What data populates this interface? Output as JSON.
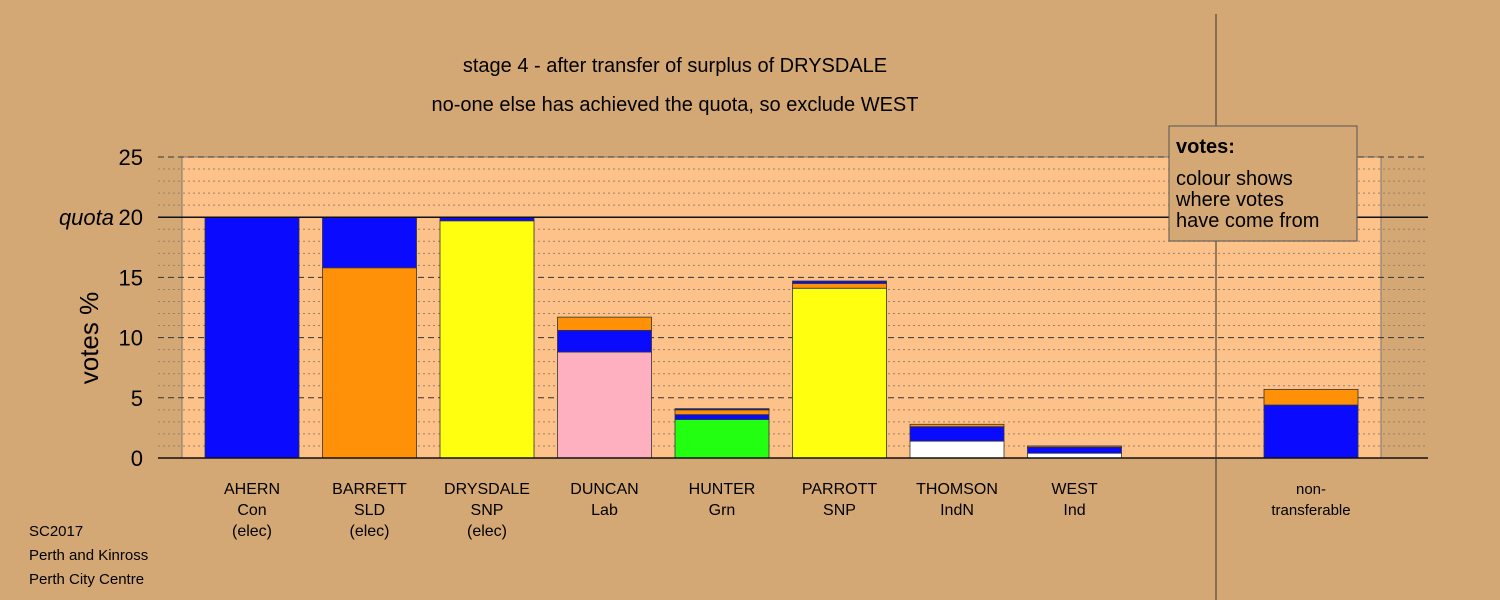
{
  "chart_data": {
    "type": "bar",
    "stacked": true,
    "title_lines": [
      "stage 4 - after transfer of surplus of DRYSDALE",
      "no-one else has achieved the quota, so exclude WEST"
    ],
    "ylabel": "votes %",
    "ylim": [
      0,
      25
    ],
    "yticks": [
      0,
      5,
      10,
      15,
      20,
      25
    ],
    "quota": 20,
    "quota_label": "quota",
    "grid": true,
    "categories": [
      {
        "lines": [
          "AHERN",
          "Con",
          "(elec)"
        ],
        "segments": [
          {
            "color": "#0a0aff",
            "value": 20.0
          }
        ]
      },
      {
        "lines": [
          "BARRETT",
          "SLD",
          "(elec)"
        ],
        "segments": [
          {
            "color": "#ff9108",
            "value": 15.8
          },
          {
            "color": "#0a0aff",
            "value": 4.2
          }
        ]
      },
      {
        "lines": [
          "DRYSDALE",
          "SNP",
          "(elec)"
        ],
        "segments": [
          {
            "color": "#ffff10",
            "value": 19.7
          },
          {
            "color": "#0a0aff",
            "value": 0.3
          }
        ]
      },
      {
        "lines": [
          "DUNCAN",
          "Lab"
        ],
        "segments": [
          {
            "color": "#ffb0c0",
            "value": 8.8
          },
          {
            "color": "#0a0aff",
            "value": 1.8
          },
          {
            "color": "#ff9108",
            "value": 1.1
          }
        ]
      },
      {
        "lines": [
          "HUNTER",
          "Grn"
        ],
        "segments": [
          {
            "color": "#22ff10",
            "value": 3.2
          },
          {
            "color": "#0a0aff",
            "value": 0.4
          },
          {
            "color": "#ff9108",
            "value": 0.4
          },
          {
            "color": "#0a0aff",
            "value": 0.1
          }
        ]
      },
      {
        "lines": [
          "PARROTT",
          "SNP"
        ],
        "segments": [
          {
            "color": "#ffff10",
            "value": 14.1
          },
          {
            "color": "#ff9108",
            "value": 0.4
          },
          {
            "color": "#0a0aff",
            "value": 0.2
          }
        ]
      },
      {
        "lines": [
          "THOMSON",
          "IndN"
        ],
        "segments": [
          {
            "color": "#ffffff",
            "value": 1.4
          },
          {
            "color": "#0a0aff",
            "value": 1.2
          },
          {
            "color": "#ff9108",
            "value": 0.2
          }
        ]
      },
      {
        "lines": [
          "WEST",
          "Ind"
        ],
        "segments": [
          {
            "color": "#ffffff",
            "value": 0.4
          },
          {
            "color": "#0a0aff",
            "value": 0.5
          },
          {
            "color": "#ff9108",
            "value": 0.1
          }
        ]
      }
    ],
    "separate": {
      "lines": [
        "non-",
        "transferable"
      ],
      "segments": [
        {
          "color": "#0a0aff",
          "value": 4.4
        },
        {
          "color": "#ff9108",
          "value": 1.3
        }
      ]
    },
    "legend": {
      "title": "votes:",
      "lines": [
        "colour shows",
        "where votes",
        "have come from"
      ],
      "position": "top-right"
    }
  },
  "footer": [
    "SC2017",
    "Perth and Kinross",
    "Perth City Centre"
  ],
  "colors": {
    "background": "#d4a875",
    "plot_area": "#fdc28a",
    "legend_bg": "#d4a875"
  }
}
